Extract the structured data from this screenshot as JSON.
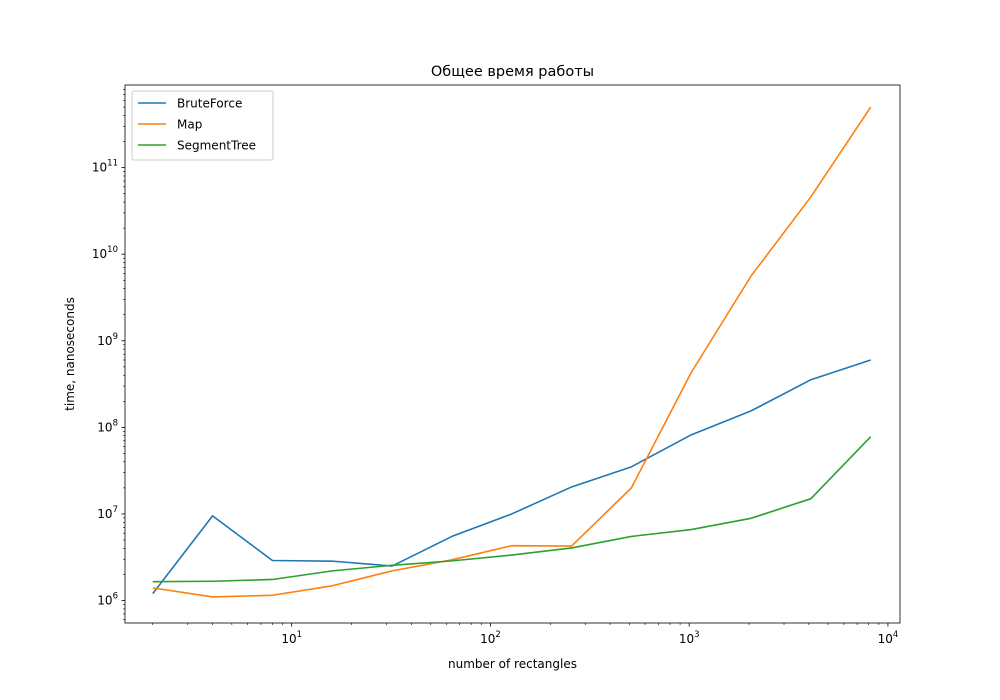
{
  "chart_data": {
    "type": "line",
    "title": "Общее время работы",
    "xlabel": "number of rectangles",
    "ylabel": "time, nanoseconds",
    "xscale": "log",
    "yscale": "log",
    "xlim": [
      1.45,
      11500
    ],
    "ylim": [
      550000,
      900000000000
    ],
    "x_ticks": [
      {
        "value": 10,
        "base": "10",
        "exp": "1"
      },
      {
        "value": 100,
        "base": "10",
        "exp": "2"
      },
      {
        "value": 1000,
        "base": "10",
        "exp": "3"
      },
      {
        "value": 10000,
        "base": "10",
        "exp": "4"
      }
    ],
    "y_ticks": [
      {
        "value": 1000000,
        "base": "10",
        "exp": "6"
      },
      {
        "value": 10000000,
        "base": "10",
        "exp": "7"
      },
      {
        "value": 100000000,
        "base": "10",
        "exp": "8"
      },
      {
        "value": 1000000000,
        "base": "10",
        "exp": "9"
      },
      {
        "value": 10000000000,
        "base": "10",
        "exp": "10"
      },
      {
        "value": 100000000000,
        "base": "10",
        "exp": "11"
      }
    ],
    "grid": false,
    "legend_position": "top-left",
    "x": [
      2,
      4,
      8,
      16,
      32,
      64,
      128,
      256,
      512,
      1024,
      2048,
      4096,
      8192
    ],
    "series": [
      {
        "name": "BruteForce",
        "color": "#1f77b4",
        "values": [
          1200000,
          9500000,
          2900000,
          2850000,
          2500000,
          5500000,
          10000000,
          20500000,
          35000000,
          82000000,
          155000000,
          355000000,
          600000000
        ]
      },
      {
        "name": "Map",
        "color": "#ff7f0e",
        "values": [
          1400000,
          1100000,
          1150000,
          1480000,
          2200000,
          2950000,
          4300000,
          4250000,
          20000000,
          430000000,
          5600000000,
          46000000000,
          500000000000
        ]
      },
      {
        "name": "SegmentTree",
        "color": "#2ca02c",
        "values": [
          1650000,
          1670000,
          1750000,
          2200000,
          2550000,
          2870000,
          3350000,
          4050000,
          5500000,
          6600000,
          8900000,
          15000000,
          78000000
        ]
      }
    ]
  }
}
